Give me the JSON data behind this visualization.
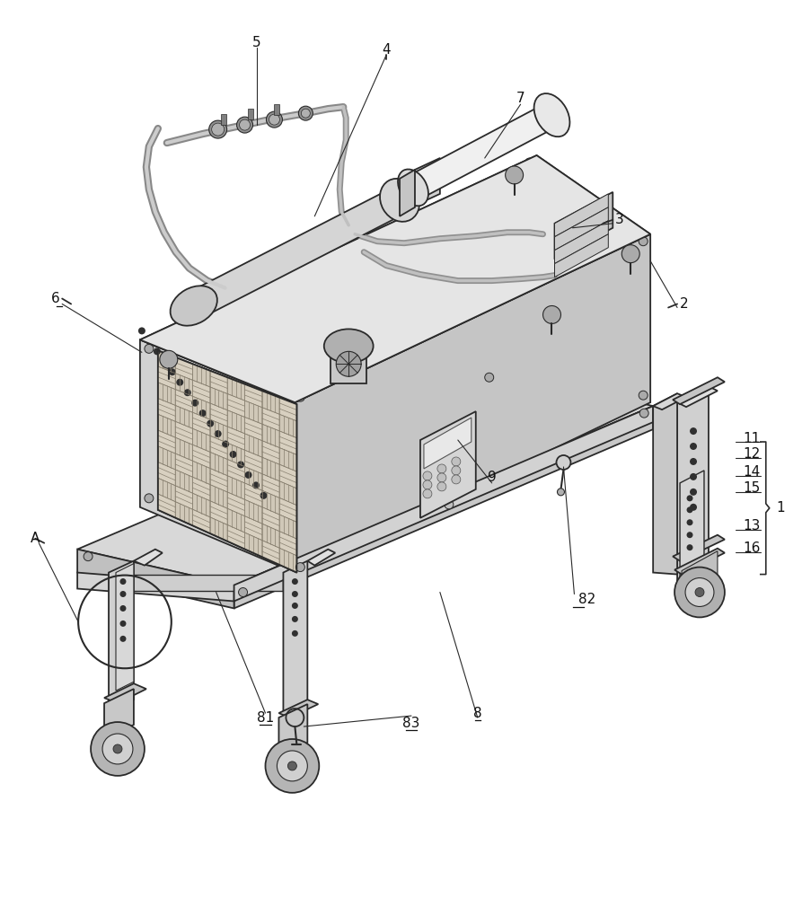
{
  "background_color": "#ffffff",
  "fig_width": 9.04,
  "fig_height": 10.0,
  "dpi": 100,
  "line_color": "#2a2a2a",
  "line_color_med": "#555555",
  "line_color_light": "#888888",
  "face_top": "#e8e8e8",
  "face_left": "#d0d0d0",
  "face_right": "#c0c0c0",
  "face_frame": "#d5d5d5",
  "face_dark": "#b8b8b8",
  "basket_bg": "#d8d4cc"
}
